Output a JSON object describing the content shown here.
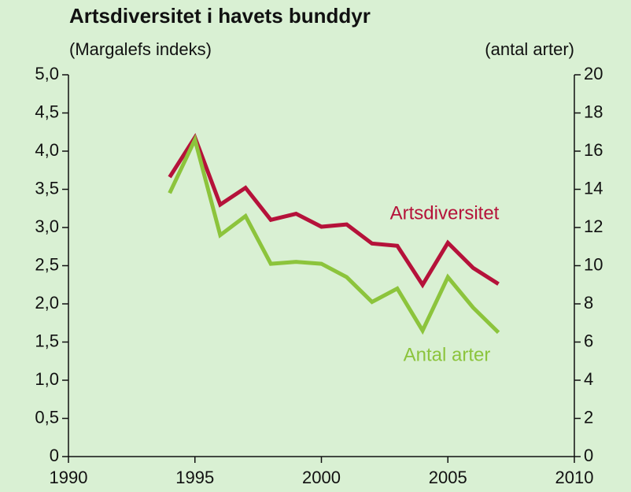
{
  "chart_data": {
    "type": "line",
    "title": "Artsdiversitet i havets bunddyr",
    "y_label": "(Margalefs indeks)",
    "y2_label": "(antal arter)",
    "x": [
      1994,
      1995,
      1996,
      1997,
      1998,
      1999,
      2000,
      2001,
      2002,
      2003,
      2004,
      2005,
      2006,
      2007
    ],
    "series": [
      {
        "name": "Artsdiversitet",
        "color": "#b5123a",
        "axis": "y",
        "values": [
          3.66,
          4.18,
          3.3,
          3.52,
          3.1,
          3.18,
          3.01,
          3.04,
          2.79,
          2.76,
          2.25,
          2.8,
          2.47,
          2.26
        ]
      },
      {
        "name": "Antal arter",
        "color": "#8cc43c",
        "axis": "y2",
        "values": [
          13.8,
          16.6,
          11.6,
          12.6,
          10.1,
          10.2,
          10.1,
          9.4,
          8.1,
          8.8,
          6.6,
          9.4,
          7.8,
          6.5
        ]
      }
    ],
    "xlim": [
      1990,
      2010
    ],
    "xticks": [
      1990,
      1995,
      2000,
      2005,
      2010
    ],
    "ylim": [
      0,
      5
    ],
    "yticks": [
      0,
      {
        "value": 0.5,
        "label": "0,5"
      },
      {
        "value": 1,
        "label": "1,0"
      },
      {
        "value": 1.5,
        "label": "1,5"
      },
      {
        "value": 2,
        "label": "2,0"
      },
      {
        "value": 2.5,
        "label": "2,5"
      },
      {
        "value": 3,
        "label": "3,0"
      },
      {
        "value": 3.5,
        "label": "3,5"
      },
      {
        "value": 4,
        "label": "4,0"
      },
      {
        "value": 4.5,
        "label": "4,5"
      },
      {
        "value": 5,
        "label": "5,0"
      }
    ],
    "y2lim": [
      0,
      20
    ],
    "y2ticks": [
      0,
      2,
      4,
      6,
      8,
      10,
      12,
      14,
      16,
      18,
      20
    ],
    "grid": false
  }
}
